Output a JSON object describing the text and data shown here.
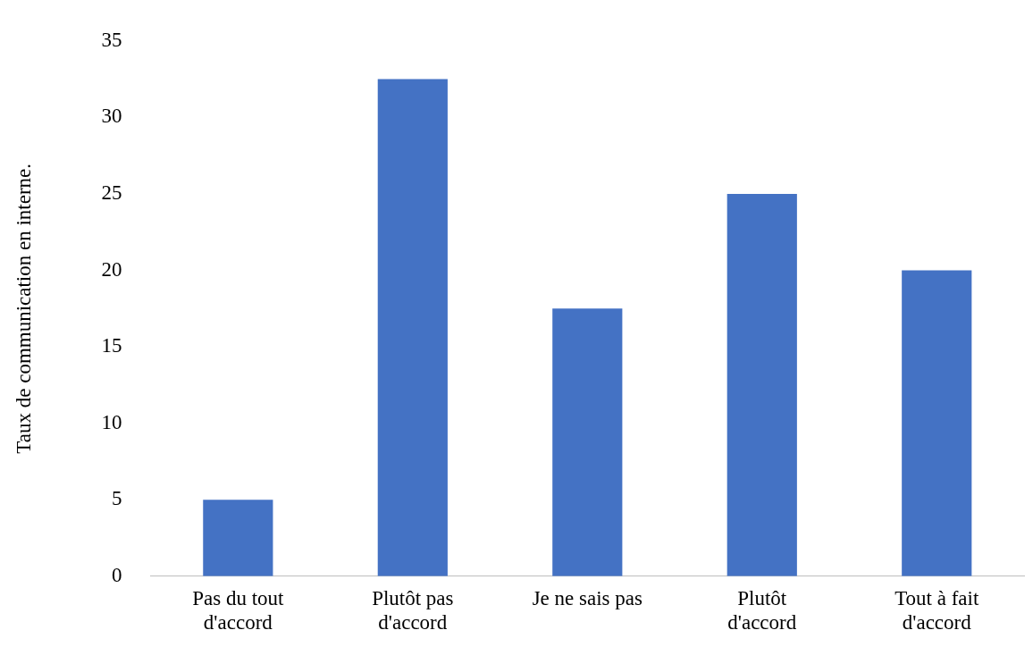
{
  "chart_data": {
    "type": "bar",
    "ylabel": "Taux de communication en interne.",
    "categories": [
      "Pas du tout d'accord",
      "Plutôt pas d'accord",
      "Je ne sais pas",
      "Plutôt d'accord",
      "Tout à fait d'accord"
    ],
    "values": [
      5,
      32.5,
      17.5,
      25,
      20
    ],
    "color": "#4472c4",
    "ylim": [
      0,
      35
    ],
    "yticks": [
      0,
      5,
      10,
      15,
      20,
      25,
      30,
      35
    ],
    "grid": false,
    "legend": false
  }
}
